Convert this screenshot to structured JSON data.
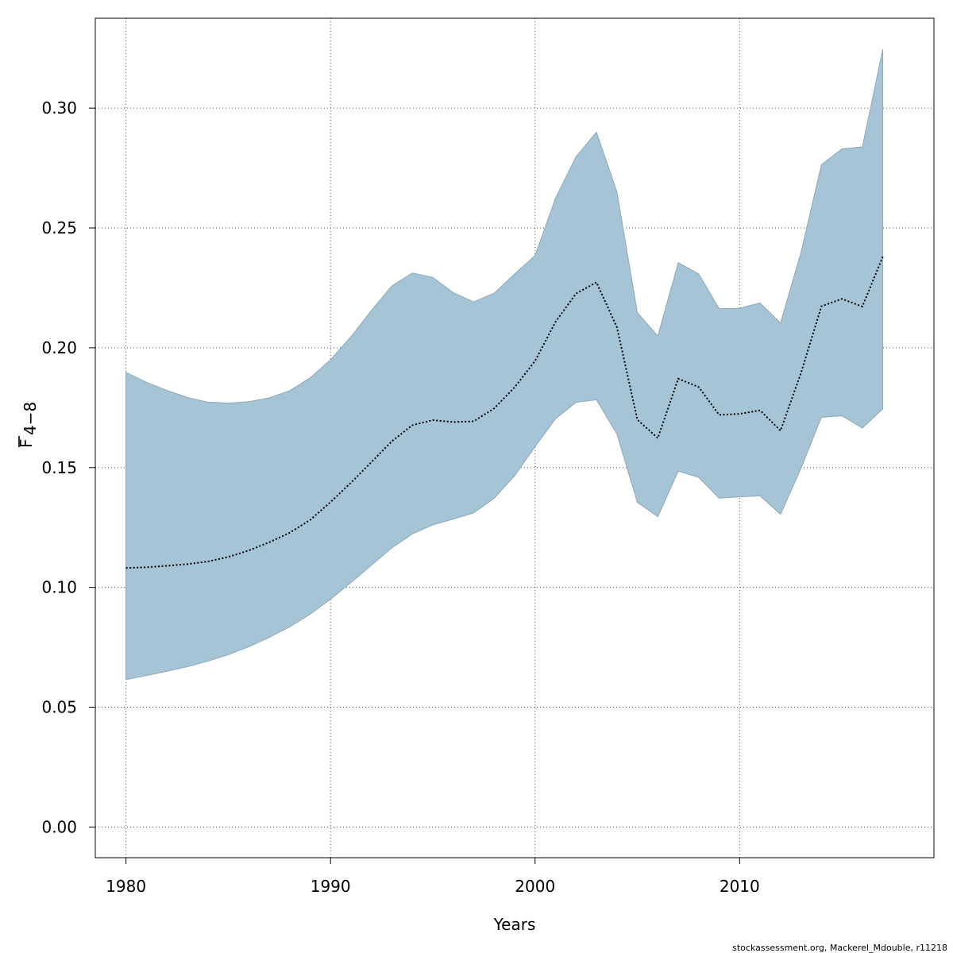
{
  "chart_data": {
    "type": "area",
    "title": "",
    "xlabel": "Years",
    "ylabel_main": "F",
    "ylabel_sub": "4−8",
    "xlim": [
      1978.5,
      2019.5
    ],
    "ylim": [
      -0.0128,
      0.3375
    ],
    "x_ticks": [
      1980,
      1990,
      2000,
      2010
    ],
    "y_ticks": [
      0.0,
      0.05,
      0.1,
      0.15,
      0.2,
      0.25,
      0.3
    ],
    "y_tick_labels": [
      "0.00",
      "0.05",
      "0.10",
      "0.15",
      "0.20",
      "0.25",
      "0.30"
    ],
    "grid": true,
    "band_color": "#a5c4d6",
    "band_edge_color": "#8fa8b8",
    "line_color": "#000000",
    "line_style": "dotted",
    "years": [
      1980,
      1981,
      1982,
      1983,
      1984,
      1985,
      1986,
      1987,
      1988,
      1989,
      1990,
      1991,
      1992,
      1993,
      1994,
      1995,
      1996,
      1997,
      1998,
      1999,
      2000,
      2001,
      2002,
      2003,
      2004,
      2005,
      2006,
      2007,
      2008,
      2009,
      2010,
      2011,
      2012,
      2013,
      2014,
      2015,
      2016,
      2017
    ],
    "series": [
      {
        "values": [
          0.1081,
          0.1084,
          0.109,
          0.1097,
          0.1108,
          0.1127,
          0.1154,
          0.1188,
          0.1228,
          0.1281,
          0.1356,
          0.1437,
          0.1523,
          0.161,
          0.1677,
          0.1698,
          0.169,
          0.1693,
          0.1747,
          0.1835,
          0.1945,
          0.2108,
          0.2226,
          0.2273,
          0.2086,
          0.17,
          0.1623,
          0.1871,
          0.1836,
          0.172,
          0.1724,
          0.1739,
          0.1654,
          0.1895,
          0.2173,
          0.2204,
          0.2172,
          0.238
        ]
      }
    ],
    "band": {
      "lower": [
        0.0615,
        0.0632,
        0.065,
        0.0669,
        0.0692,
        0.0719,
        0.0752,
        0.0791,
        0.0835,
        0.0888,
        0.0951,
        0.102,
        0.1093,
        0.1165,
        0.1223,
        0.1261,
        0.1285,
        0.1311,
        0.1372,
        0.1466,
        0.1587,
        0.1704,
        0.1772,
        0.1783,
        0.164,
        0.1355,
        0.1295,
        0.1485,
        0.1459,
        0.1372,
        0.1378,
        0.1382,
        0.1305,
        0.1497,
        0.171,
        0.1716,
        0.1665,
        0.1745
      ],
      "upper": [
        0.1897,
        0.1856,
        0.1822,
        0.1793,
        0.1773,
        0.1769,
        0.1775,
        0.1791,
        0.1821,
        0.1874,
        0.195,
        0.2046,
        0.2156,
        0.2258,
        0.2312,
        0.2294,
        0.223,
        0.2191,
        0.2228,
        0.2308,
        0.2385,
        0.2624,
        0.2797,
        0.29,
        0.2651,
        0.2147,
        0.2049,
        0.2355,
        0.2308,
        0.2163,
        0.2165,
        0.2187,
        0.2103,
        0.2398,
        0.2764,
        0.283,
        0.2838,
        0.3246
      ]
    }
  },
  "source_note": "stockassessment.org, Mackerel_Mdouble, r11218"
}
